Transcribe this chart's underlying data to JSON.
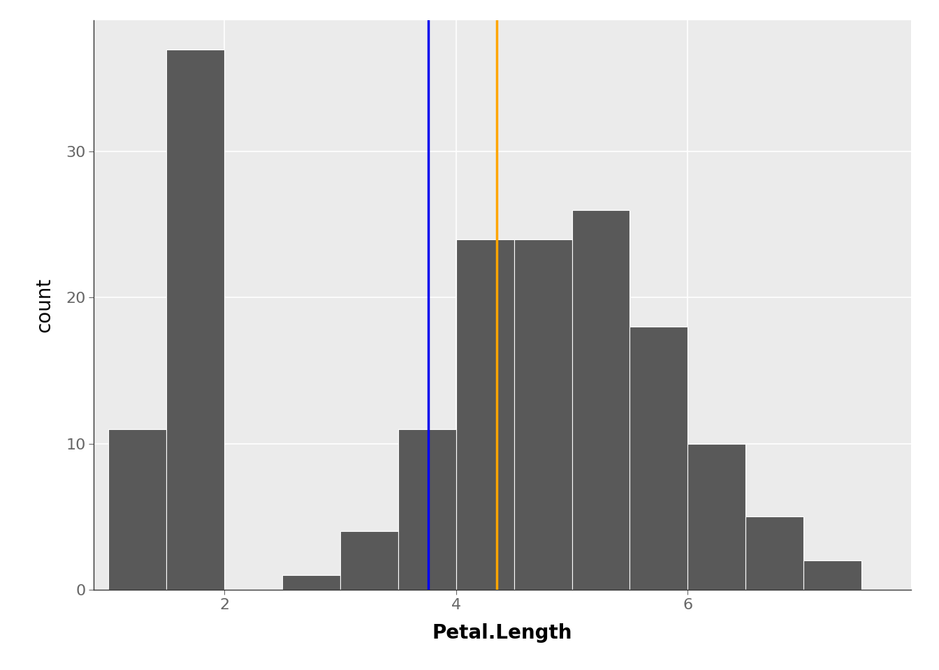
{
  "title": "",
  "xlabel": "Petal.Length",
  "ylabel": "count",
  "bar_color": "#595959",
  "bar_edge_color": "white",
  "mean_line_color": "#0000EE",
  "median_line_color": "#FFA500",
  "mean_value": 3.758,
  "median_value": 4.35,
  "bin_edges": [
    1.0,
    1.5,
    2.0,
    2.5,
    3.0,
    3.5,
    4.0,
    4.5,
    5.0,
    5.5,
    6.0,
    6.5,
    7.0,
    7.5
  ],
  "bin_counts": [
    11,
    37,
    0,
    1,
    4,
    11,
    24,
    24,
    26,
    18,
    10,
    5,
    2
  ],
  "background_color": "#ffffff",
  "panel_background": "#ebebeb",
  "grid_color": "#ffffff",
  "xlim": [
    0.875,
    7.925
  ],
  "ylim": [
    0,
    39
  ],
  "yticks": [
    0,
    10,
    20,
    30
  ],
  "xticks": [
    2,
    4,
    6
  ],
  "line_width": 2.5,
  "axis_label_fontsize": 20,
  "tick_fontsize": 16,
  "tick_color": "#666666",
  "spine_color": "#333333",
  "xlabel_bold": true
}
